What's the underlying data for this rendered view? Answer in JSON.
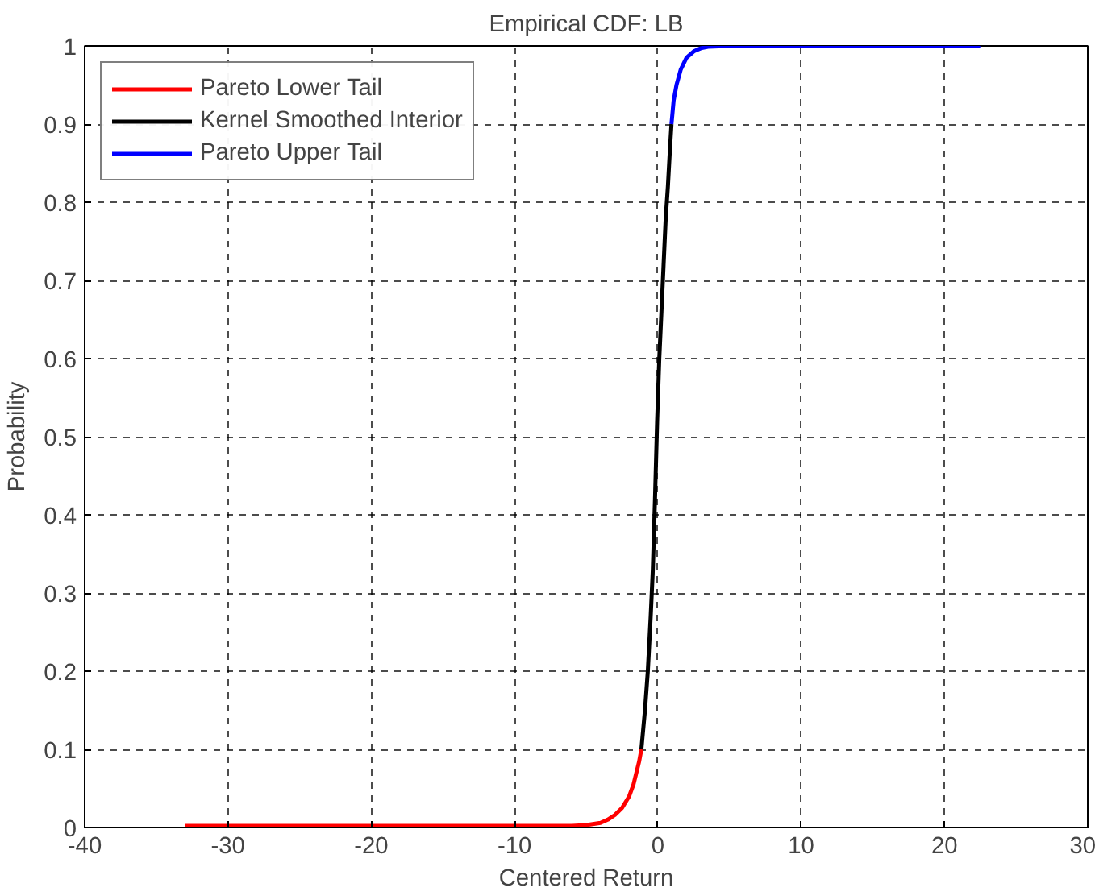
{
  "chart_data": {
    "type": "line",
    "title": "Empirical CDF: LB",
    "xlabel": "Centered Return",
    "ylabel": "Probability",
    "xlim": [
      -40,
      30
    ],
    "xticks": [
      -40,
      -30,
      -20,
      -10,
      0,
      10,
      20,
      30
    ],
    "ylim": [
      0,
      1
    ],
    "yticks": [
      0,
      0.1,
      0.2,
      0.3,
      0.4,
      0.5,
      0.6,
      0.7,
      0.8,
      0.9,
      1
    ],
    "grid": true,
    "legend": "top left",
    "line_style": "solid",
    "series": [
      {
        "name": "Pareto Lower Tail",
        "color": "#ff0000",
        "x": [
          -33,
          -20,
          -10,
          -6,
          -5,
          -4,
          -3.5,
          -3,
          -2.5,
          -2,
          -1.7,
          -1.5,
          -1.3,
          -1.15
        ],
        "values": [
          0.002,
          0.002,
          0.002,
          0.002,
          0.003,
          0.006,
          0.01,
          0.016,
          0.025,
          0.04,
          0.055,
          0.07,
          0.085,
          0.1
        ]
      },
      {
        "name": "Kernel Smoothed Interior",
        "color": "#000000",
        "x": [
          -1.15,
          -0.9,
          -0.7,
          -0.5,
          -0.35,
          -0.2,
          -0.05,
          0.1,
          0.25,
          0.4,
          0.55,
          0.7,
          0.85,
          0.95
        ],
        "values": [
          0.1,
          0.15,
          0.2,
          0.27,
          0.33,
          0.42,
          0.52,
          0.6,
          0.66,
          0.72,
          0.78,
          0.82,
          0.87,
          0.9
        ]
      },
      {
        "name": "Pareto Upper Tail",
        "color": "#0000ff",
        "x": [
          0.95,
          1.1,
          1.3,
          1.6,
          2,
          2.5,
          3,
          3.5,
          5,
          10,
          15,
          22.5
        ],
        "values": [
          0.9,
          0.93,
          0.95,
          0.97,
          0.985,
          0.993,
          0.997,
          0.999,
          1,
          1,
          1,
          1
        ]
      }
    ]
  }
}
